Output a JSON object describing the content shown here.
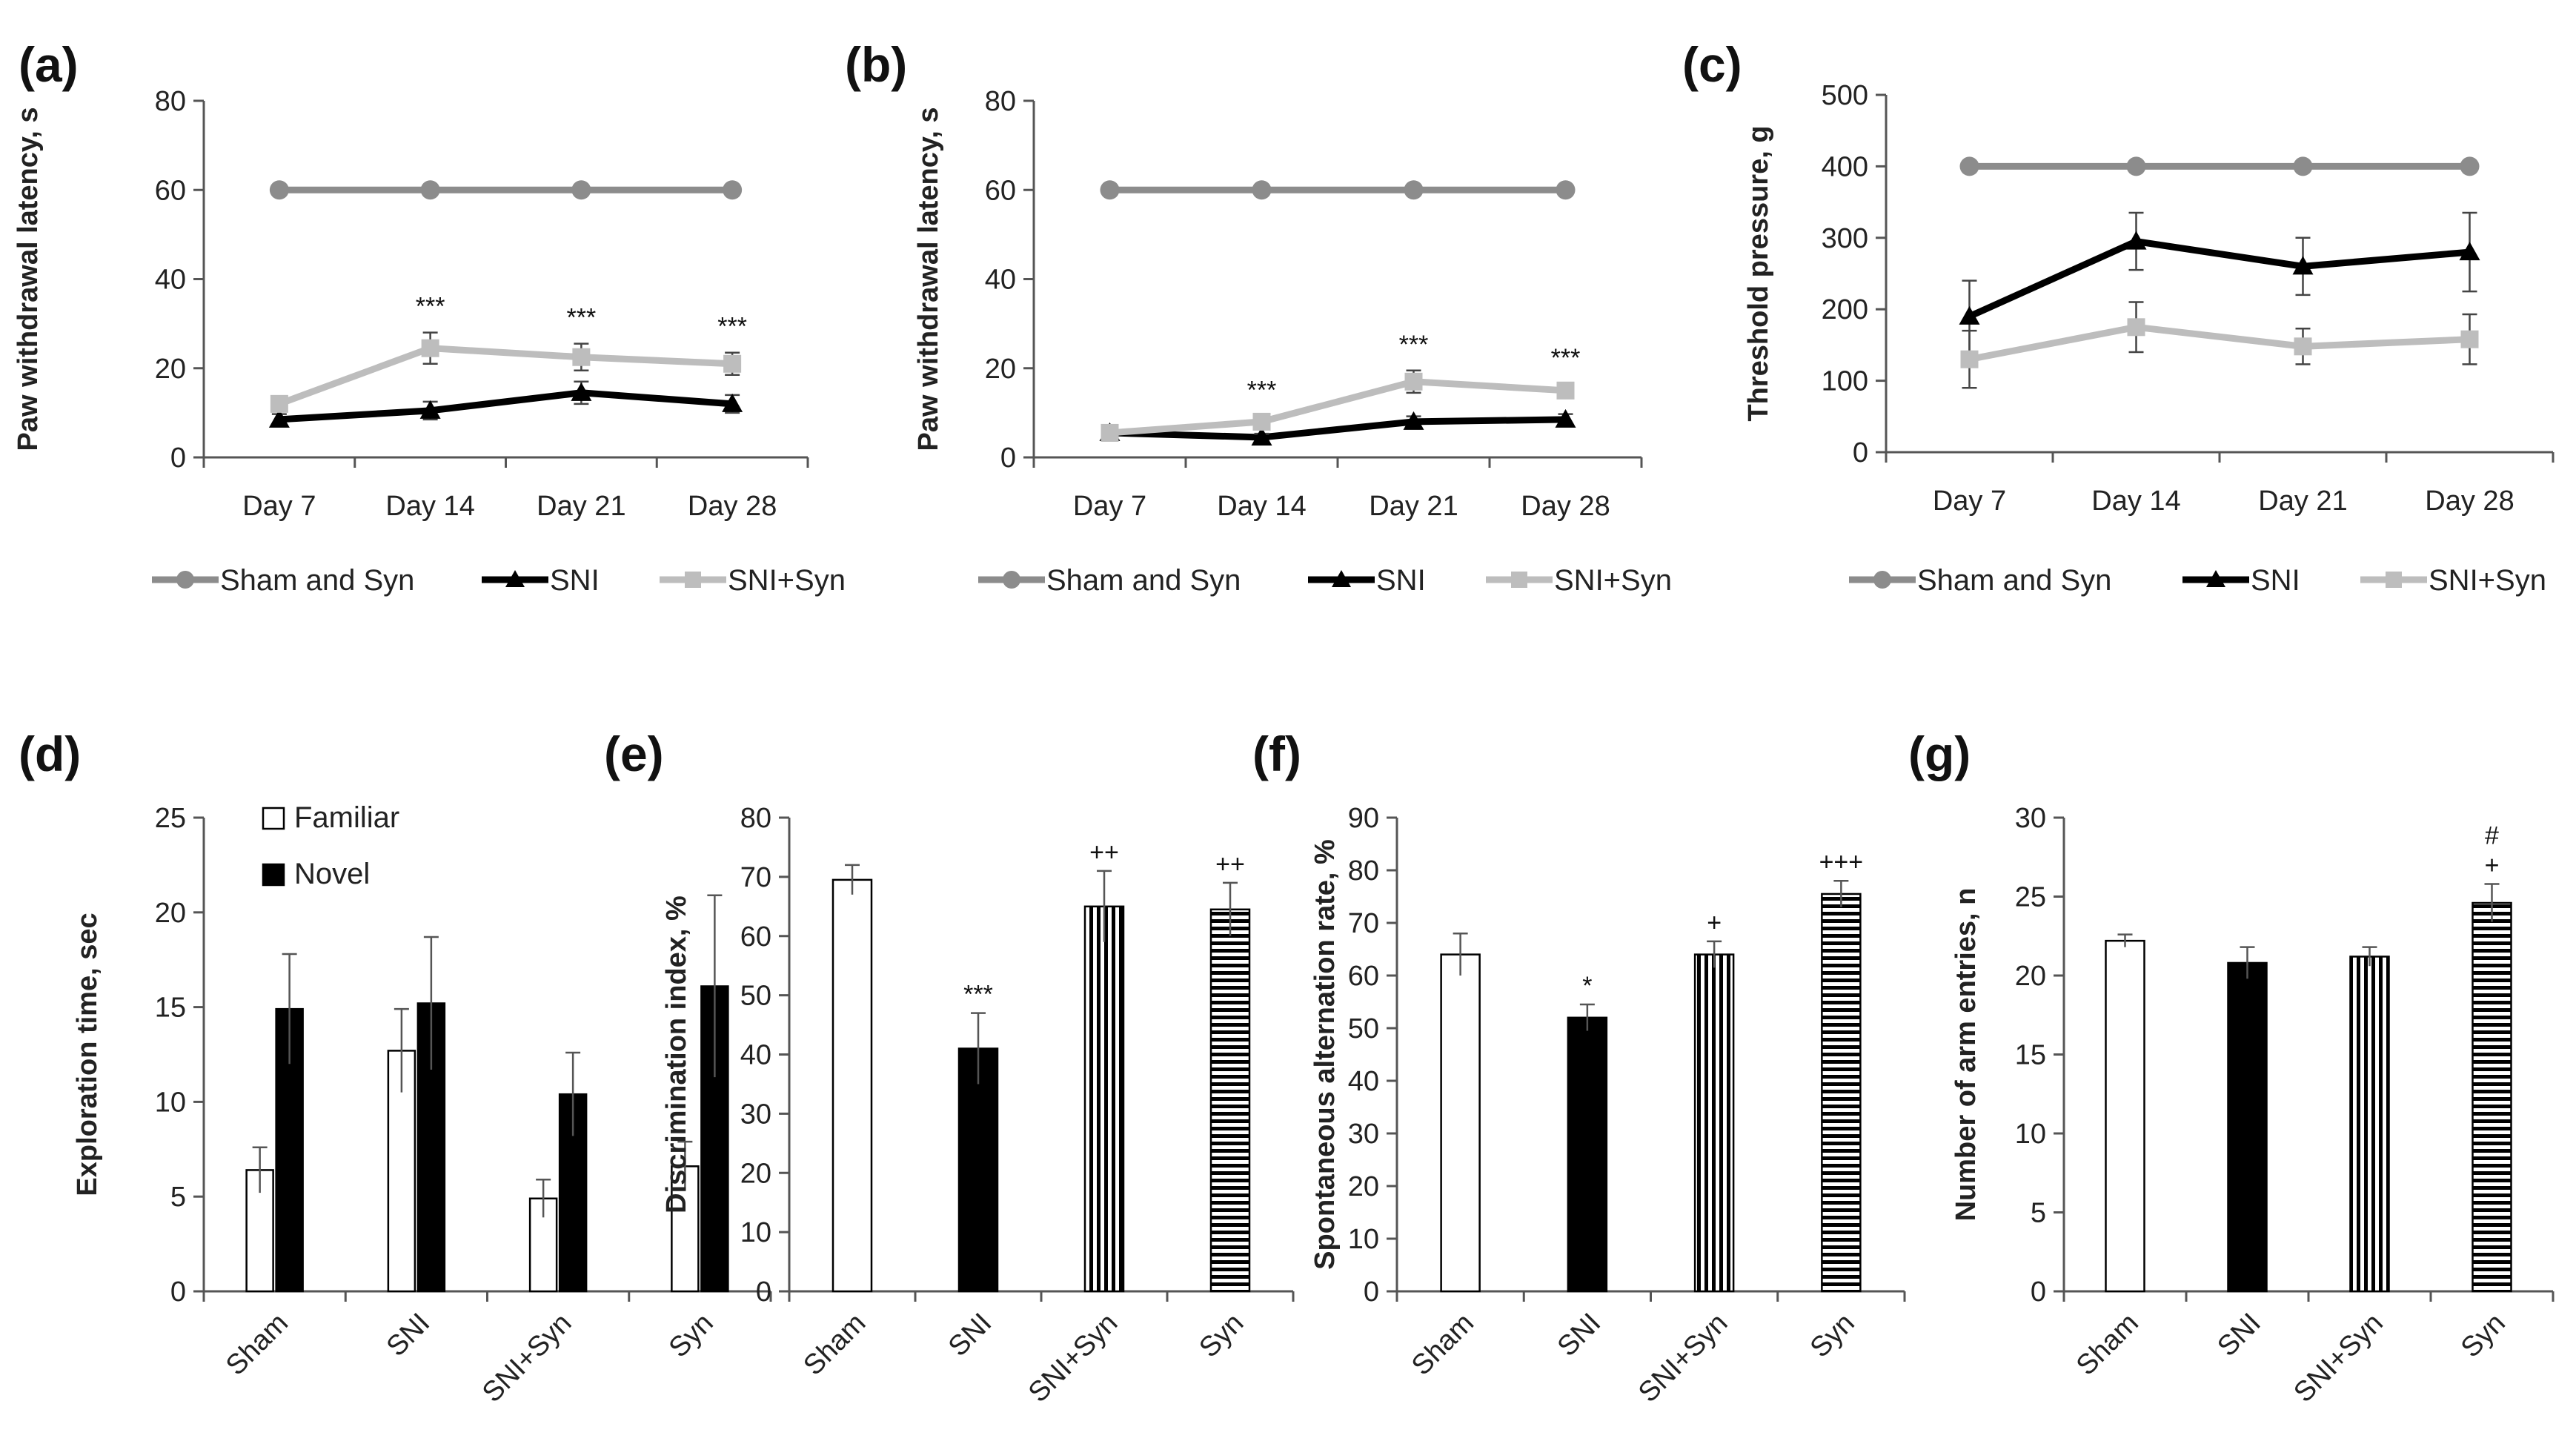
{
  "figure": {
    "colors": {
      "sham_syn": "#8c8c8c",
      "sni": "#000000",
      "sni_syn": "#bdbdbd",
      "axis": "#555555",
      "text": "#222222"
    }
  },
  "chart_data": [
    {
      "panel": "(a)",
      "type": "line",
      "ylabel": "Paw withdrawal latency, s",
      "ylim": [
        0,
        80
      ],
      "yticks": [
        "0",
        "20",
        "40",
        "60",
        "80"
      ],
      "categories": [
        "Day 7",
        "Day 14",
        "Day 21",
        "Day 28"
      ],
      "series": [
        {
          "name": "Sham and Syn",
          "values": [
            60,
            60,
            60,
            60
          ],
          "errors": [
            0,
            0,
            0,
            0
          ],
          "marker": "circle",
          "color": "#8c8c8c"
        },
        {
          "name": "SNI",
          "values": [
            8.5,
            10.5,
            14.5,
            12
          ],
          "errors": [
            1.2,
            2.0,
            2.5,
            2.0
          ],
          "marker": "triangle",
          "color": "#000000"
        },
        {
          "name": "SNI+Syn",
          "values": [
            12,
            24.5,
            22.5,
            21
          ],
          "errors": [
            1.5,
            3.5,
            3.0,
            2.5
          ],
          "marker": "square",
          "color": "#bdbdbd"
        }
      ],
      "annotations": [
        "",
        "***",
        "***",
        "***"
      ],
      "legend": [
        "Sham and Syn",
        "SNI",
        "SNI+Syn"
      ],
      "legend_position": "bottom"
    },
    {
      "panel": "(b)",
      "type": "line",
      "ylabel": "Paw withdrawal latency, s",
      "ylim": [
        0,
        80
      ],
      "yticks": [
        "0",
        "20",
        "40",
        "60",
        "80"
      ],
      "categories": [
        "Day 7",
        "Day 14",
        "Day 21",
        "Day 28"
      ],
      "series": [
        {
          "name": "Sham and Syn",
          "values": [
            60,
            60,
            60,
            60
          ],
          "errors": [
            0,
            0,
            0,
            0
          ],
          "marker": "circle",
          "color": "#8c8c8c"
        },
        {
          "name": "SNI",
          "values": [
            5.5,
            4.5,
            8,
            8.5
          ],
          "errors": [
            0.8,
            0.8,
            1.2,
            1.2
          ],
          "marker": "triangle",
          "color": "#000000"
        },
        {
          "name": "SNI+Syn",
          "values": [
            5.5,
            8,
            17,
            15
          ],
          "errors": [
            0.8,
            1.2,
            2.5,
            1.5
          ],
          "marker": "square",
          "color": "#bdbdbd"
        }
      ],
      "annotations": [
        "",
        "***",
        "***",
        "***"
      ],
      "legend": [
        "Sham and Syn",
        "SNI",
        "SNI+Syn"
      ],
      "legend_position": "bottom"
    },
    {
      "panel": "(c)",
      "type": "line",
      "ylabel": "Threshold pressure, g",
      "ylim": [
        0,
        500
      ],
      "yticks": [
        "0",
        "100",
        "200",
        "300",
        "400",
        "500"
      ],
      "categories": [
        "Day 7",
        "Day 14",
        "Day 21",
        "Day 28"
      ],
      "series": [
        {
          "name": "Sham and Syn",
          "values": [
            400,
            400,
            400,
            400
          ],
          "errors": [
            0,
            0,
            0,
            0
          ],
          "marker": "circle",
          "color": "#8c8c8c"
        },
        {
          "name": "SNI",
          "values": [
            190,
            295,
            260,
            280
          ],
          "errors": [
            50,
            40,
            40,
            55
          ],
          "marker": "triangle",
          "color": "#000000"
        },
        {
          "name": "SNI+Syn",
          "values": [
            130,
            175,
            148,
            158
          ],
          "errors": [
            40,
            35,
            25,
            35
          ],
          "marker": "square",
          "color": "#bdbdbd"
        }
      ],
      "annotations": [
        "",
        "",
        "",
        ""
      ],
      "legend": [
        "Sham and Syn",
        "SNI",
        "SNI+Syn"
      ],
      "legend_position": "bottom"
    },
    {
      "panel": "(d)",
      "type": "bar",
      "ylabel": "Exploration time, sec",
      "ylim": [
        0,
        25
      ],
      "yticks": [
        "0",
        "5",
        "10",
        "15",
        "20",
        "25"
      ],
      "categories": [
        "Sham",
        "SNI",
        "SNI+Syn",
        "Syn"
      ],
      "series": [
        {
          "name": "Familiar",
          "values": [
            6.4,
            12.7,
            4.9,
            6.6
          ],
          "errors": [
            1.2,
            2.2,
            1.0,
            1.3
          ],
          "fill": "white"
        },
        {
          "name": "Novel",
          "values": [
            14.9,
            15.2,
            10.4,
            16.1
          ],
          "errors": [
            2.9,
            3.5,
            2.2,
            4.8
          ],
          "fill": "black"
        }
      ],
      "legend": [
        "Familiar",
        "Novel"
      ],
      "legend_position": "top-left"
    },
    {
      "panel": "(e)",
      "type": "bar",
      "ylabel": "Discrimination index, %",
      "ylim": [
        0,
        80
      ],
      "yticks": [
        "0",
        "10",
        "20",
        "30",
        "40",
        "50",
        "60",
        "70",
        "80"
      ],
      "categories": [
        "Sham",
        "SNI",
        "SNI+Syn",
        "Syn"
      ],
      "values": [
        69.5,
        41,
        65,
        64.5
      ],
      "errors": [
        2.5,
        6.0,
        6.0,
        4.5
      ],
      "fills": [
        "white",
        "black",
        "vertical",
        "horizontal"
      ],
      "annotations": [
        "",
        "***",
        "++",
        "++"
      ]
    },
    {
      "panel": "(f)",
      "type": "bar",
      "ylabel": "Spontaneous alternation rate, %",
      "ylim": [
        0,
        90
      ],
      "yticks": [
        "0",
        "10",
        "20",
        "30",
        "40",
        "50",
        "60",
        "70",
        "80",
        "90"
      ],
      "categories": [
        "Sham",
        "SNI",
        "SNI+Syn",
        "Syn"
      ],
      "values": [
        64,
        52,
        64,
        75.5
      ],
      "errors": [
        4.0,
        2.5,
        2.5,
        2.5
      ],
      "fills": [
        "white",
        "black",
        "vertical",
        "horizontal"
      ],
      "annotations": [
        "",
        "*",
        "+",
        "+++"
      ]
    },
    {
      "panel": "(g)",
      "type": "bar",
      "ylabel": "Number of arm entries, n",
      "ylim": [
        0,
        30
      ],
      "yticks": [
        "0",
        "5",
        "10",
        "15",
        "20",
        "25",
        "30"
      ],
      "categories": [
        "Sham",
        "SNI",
        "SNI+Syn",
        "Syn"
      ],
      "values": [
        22.2,
        20.8,
        21.2,
        24.6
      ],
      "errors": [
        0.4,
        1.0,
        0.6,
        1.2
      ],
      "fills": [
        "white",
        "black",
        "vertical",
        "horizontal"
      ],
      "annotations": [
        "",
        "",
        "",
        "#\n+"
      ]
    }
  ]
}
